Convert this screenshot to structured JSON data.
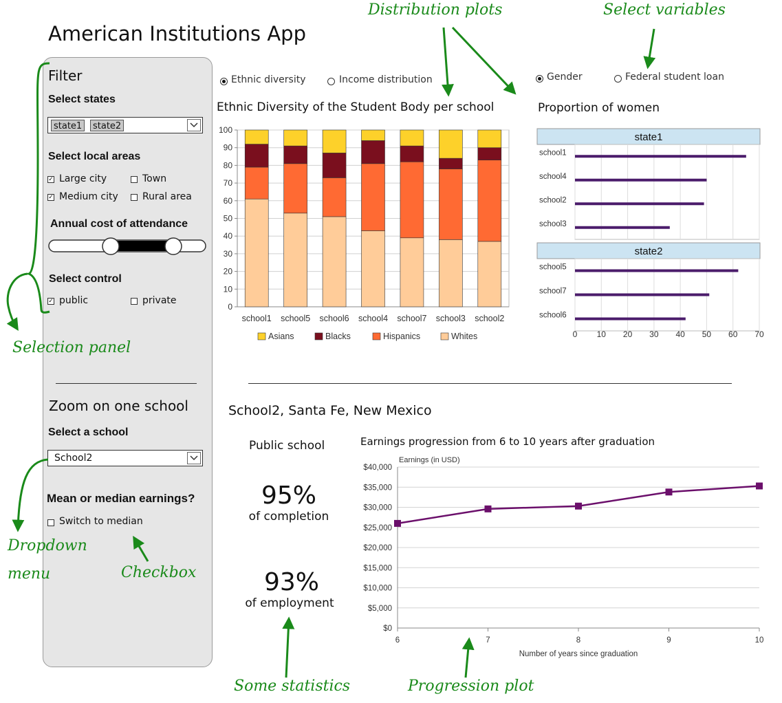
{
  "app_title": "American Institutions App",
  "filter": {
    "title": "Filter",
    "states_label": "Select states",
    "states_selected": [
      "state1",
      "state2"
    ],
    "areas_label": "Select local areas",
    "areas": [
      {
        "label": "Large city",
        "checked": true
      },
      {
        "label": "Town",
        "checked": false
      },
      {
        "label": "Medium city",
        "checked": true
      },
      {
        "label": "Rural area",
        "checked": false
      }
    ],
    "cost_label": "Annual cost of attendance",
    "control_label": "Select control",
    "control": [
      {
        "label": "public",
        "checked": true
      },
      {
        "label": "private",
        "checked": false
      }
    ]
  },
  "zoom": {
    "title": "Zoom on one school",
    "school_label": "Select a school",
    "school_value": "School2",
    "earnings_label": "Mean or median earnings?",
    "median_label": "Switch to median",
    "median_checked": false
  },
  "dist": {
    "radio1": "Ethnic diversity",
    "radio2": "Income distribution",
    "selected": "Ethnic diversity"
  },
  "vars": {
    "radio1": "Gender",
    "radio2": "Federal student loan",
    "selected": "Gender"
  },
  "school_header": "School2, Santa Fe, New Mexico",
  "stats": {
    "type": "Public school",
    "completion_value": "95%",
    "completion_label": "of completion",
    "employment_value": "93%",
    "employment_label": "of employment"
  },
  "annotations": {
    "distribution_plots": "Distribution plots",
    "select_variables": "Select variables",
    "selection_panel": "Selection panel",
    "dropdown_menu_1": "Dropdown",
    "dropdown_menu_2": "menu",
    "checkbox": "Checkbox",
    "some_statistics": "Some statistics",
    "progression_plot": "Progression plot"
  },
  "colors": {
    "asians": "#fdd12a",
    "blacks": "#7a0f1e",
    "hispanics": "#ff6a33",
    "whites": "#ffcc99",
    "women_bar": "#4b1c6b",
    "earnings_line": "#6b0f6b",
    "facet_header": "#cce4f2",
    "annotation": "#1a8a1a"
  },
  "chart_data": [
    {
      "type": "bar",
      "stacked": true,
      "title": "Ethnic Diversity of the Student Body per school",
      "categories": [
        "school1",
        "school5",
        "school6",
        "school4",
        "school7",
        "school3",
        "school2"
      ],
      "series": [
        {
          "name": "Whites",
          "values": [
            61,
            53,
            51,
            43,
            39,
            38,
            37
          ]
        },
        {
          "name": "Hispanics",
          "values": [
            18,
            28,
            22,
            38,
            43,
            40,
            46
          ]
        },
        {
          "name": "Blacks",
          "values": [
            13,
            10,
            14,
            13,
            9,
            6,
            7
          ]
        },
        {
          "name": "Asians",
          "values": [
            8,
            9,
            13,
            6,
            9,
            16,
            10
          ]
        }
      ],
      "legend_order": [
        "Asians",
        "Blacks",
        "Hispanics",
        "Whites"
      ],
      "ylim": [
        0,
        100
      ],
      "yticks": [
        0,
        10,
        20,
        30,
        40,
        50,
        60,
        70,
        80,
        90,
        100
      ],
      "legend": "bottom"
    },
    {
      "type": "bar",
      "orientation": "horizontal",
      "title": "Proportion of women",
      "facets": [
        {
          "name": "state1",
          "categories": [
            "school1",
            "school4",
            "school2",
            "school3"
          ],
          "values": [
            65,
            50,
            49,
            36
          ]
        },
        {
          "name": "state2",
          "categories": [
            "school5",
            "school7",
            "school6"
          ],
          "values": [
            62,
            51,
            42
          ]
        }
      ],
      "xlim": [
        0,
        70
      ],
      "xticks": [
        0,
        10,
        20,
        30,
        40,
        50,
        60,
        70
      ]
    },
    {
      "type": "line",
      "title": "Earnings progression from 6 to 10 years after graduation",
      "xlabel": "Number of years since graduation",
      "ylabel": "Earnings (in USD)",
      "x": [
        6,
        7,
        8,
        9,
        10
      ],
      "y": [
        26000,
        29600,
        30300,
        33800,
        35300
      ],
      "ylim": [
        0,
        40000
      ],
      "yticks": [
        "$0",
        "$5,000",
        "$10,000",
        "$15,000",
        "$20,000",
        "$25,000",
        "$30,000",
        "$35,000",
        "$40,000"
      ],
      "xticks": [
        "6",
        "7",
        "8",
        "9",
        "10"
      ]
    }
  ]
}
